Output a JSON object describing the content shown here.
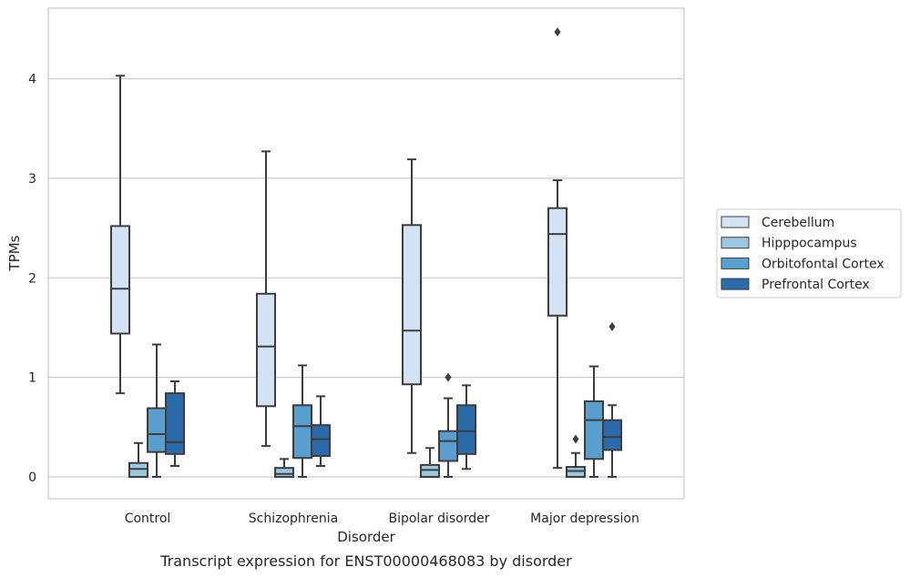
{
  "chart_data": {
    "type": "box",
    "title": "Transcript expression for ENST00000468083 by disorder",
    "xlabel": "Disorder",
    "ylabel": "TPMs",
    "ylim": [
      -0.22,
      4.7
    ],
    "yticks": [
      0,
      1,
      2,
      3,
      4
    ],
    "grid": "horizontal",
    "legend_position": "right",
    "categories": [
      "Control",
      "Schizophrenia",
      "Bipolar disorder",
      "Major depression"
    ],
    "series": [
      {
        "name": "Cerebellum",
        "color": "#d3e3f3",
        "boxes": [
          {
            "whislo": 0.84,
            "q1": 1.44,
            "med": 1.89,
            "q3": 2.52,
            "whishi": 4.03,
            "fliers": []
          },
          {
            "whislo": 0.31,
            "q1": 0.71,
            "med": 1.31,
            "q3": 1.84,
            "whishi": 3.27,
            "fliers": []
          },
          {
            "whislo": 0.24,
            "q1": 0.93,
            "med": 1.47,
            "q3": 2.53,
            "whishi": 3.19,
            "fliers": []
          },
          {
            "whislo": 0.09,
            "q1": 1.62,
            "med": 2.44,
            "q3": 2.7,
            "whishi": 2.98,
            "fliers": [
              4.47
            ]
          }
        ]
      },
      {
        "name": "Hipppocampus",
        "color": "#9ac8e0",
        "boxes": [
          {
            "whislo": 0.0,
            "q1": 0.0,
            "med": 0.08,
            "q3": 0.14,
            "whishi": 0.34,
            "fliers": []
          },
          {
            "whislo": 0.0,
            "q1": 0.0,
            "med": 0.03,
            "q3": 0.09,
            "whishi": 0.18,
            "fliers": []
          },
          {
            "whislo": 0.0,
            "q1": 0.0,
            "med": 0.07,
            "q3": 0.12,
            "whishi": 0.29,
            "fliers": []
          },
          {
            "whislo": 0.0,
            "q1": 0.0,
            "med": 0.06,
            "q3": 0.1,
            "whishi": 0.24,
            "fliers": [
              0.38
            ]
          }
        ]
      },
      {
        "name": "Orbitofontal Cortex",
        "color": "#5a9ecd",
        "boxes": [
          {
            "whislo": 0.0,
            "q1": 0.25,
            "med": 0.43,
            "q3": 0.69,
            "whishi": 1.33,
            "fliers": []
          },
          {
            "whislo": 0.0,
            "q1": 0.19,
            "med": 0.51,
            "q3": 0.72,
            "whishi": 1.12,
            "fliers": []
          },
          {
            "whislo": 0.0,
            "q1": 0.16,
            "med": 0.36,
            "q3": 0.46,
            "whishi": 0.79,
            "fliers": [
              1.0
            ]
          },
          {
            "whislo": 0.0,
            "q1": 0.18,
            "med": 0.57,
            "q3": 0.76,
            "whishi": 1.11,
            "fliers": []
          }
        ]
      },
      {
        "name": "Prefrontal Cortex",
        "color": "#2b6ba9",
        "boxes": [
          {
            "whislo": 0.11,
            "q1": 0.23,
            "med": 0.35,
            "q3": 0.84,
            "whishi": 0.96,
            "fliers": []
          },
          {
            "whislo": 0.11,
            "q1": 0.21,
            "med": 0.38,
            "q3": 0.52,
            "whishi": 0.81,
            "fliers": []
          },
          {
            "whislo": 0.08,
            "q1": 0.23,
            "med": 0.46,
            "q3": 0.72,
            "whishi": 0.92,
            "fliers": []
          },
          {
            "whislo": 0.0,
            "q1": 0.27,
            "med": 0.4,
            "q3": 0.57,
            "whishi": 0.72,
            "fliers": [
              1.51
            ]
          }
        ]
      }
    ]
  }
}
